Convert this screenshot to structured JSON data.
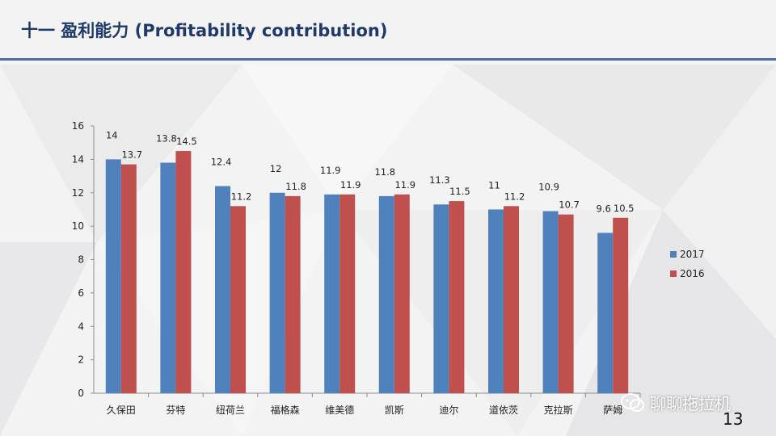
{
  "slide": {
    "title": "十一  盈利能力 (Profitability contribution)",
    "page_number": "13",
    "watermark": "聊聊拖拉机"
  },
  "colors": {
    "title": "#1f3a68",
    "rule": "#4a6fa5",
    "series_2017": "#4f81bd",
    "series_2016": "#c0504d"
  },
  "chart_data": {
    "type": "bar",
    "categories": [
      "久保田",
      "芬特",
      "纽荷兰",
      "福格森",
      "维美德",
      "凯斯",
      "迪尔",
      "道依茨",
      "克拉斯",
      "萨姆"
    ],
    "series": [
      {
        "name": "2017",
        "values": [
          14,
          13.8,
          12.4,
          12,
          11.9,
          11.8,
          11.3,
          11,
          10.9,
          9.6
        ]
      },
      {
        "name": "2016",
        "values": [
          13.7,
          14.5,
          11.2,
          11.8,
          11.9,
          11.9,
          11.5,
          11.2,
          10.7,
          10.5
        ]
      }
    ],
    "y_ticks": [
      "0",
      "2",
      "4",
      "6",
      "8",
      "10",
      "12",
      "14",
      "16"
    ],
    "ylim": [
      0,
      16
    ],
    "legend_position": "right",
    "data_labels": true,
    "grid": false
  }
}
